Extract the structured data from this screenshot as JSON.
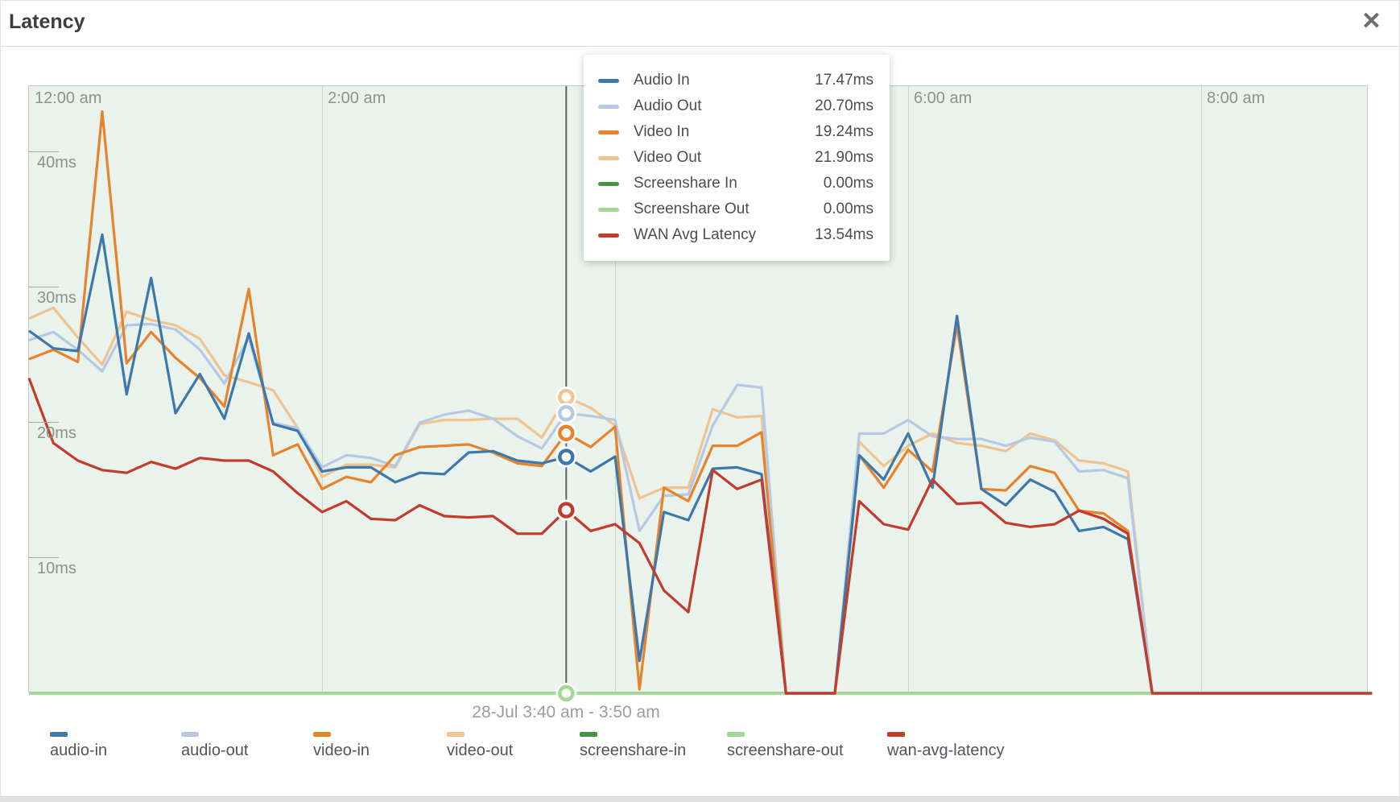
{
  "header": {
    "title": "Latency",
    "close_icon": "✕"
  },
  "axes": {
    "y_tick_labels": [
      "40ms",
      "30ms",
      "20ms",
      "10ms"
    ],
    "x_axis_labels": [
      "12:00 am",
      "2:00 am",
      "4:00 am",
      "6:00 am",
      "8:00 am"
    ]
  },
  "tooltip": {
    "rows": [
      {
        "label": "Audio In",
        "value": "17.47ms",
        "color": "#3d78ad"
      },
      {
        "label": "Audio Out",
        "value": "20.70ms",
        "color": "#b6c9e4"
      },
      {
        "label": "Video In",
        "value": "19.24ms",
        "color": "#e8832c"
      },
      {
        "label": "Video Out",
        "value": "21.90ms",
        "color": "#f0c492"
      },
      {
        "label": "Screenshare In",
        "value": "0.00ms",
        "color": "#48913f"
      },
      {
        "label": "Screenshare Out",
        "value": "0.00ms",
        "color": "#a2d795"
      },
      {
        "label": "WAN Avg Latency",
        "value": "13.54ms",
        "color": "#c23b2c"
      }
    ]
  },
  "hover": {
    "date_range_label": "28-Jul 3:40 am - 3:50 am"
  },
  "legend": {
    "items": [
      {
        "label": "audio-in",
        "color": "#3d78ad"
      },
      {
        "label": "audio-out",
        "color": "#b6c9e4"
      },
      {
        "label": "video-in",
        "color": "#e8832c"
      },
      {
        "label": "video-out",
        "color": "#f0c492"
      },
      {
        "label": "screenshare-in",
        "color": "#48913f"
      },
      {
        "label": "screenshare-out",
        "color": "#a2d795"
      },
      {
        "label": "wan-avg-latency",
        "color": "#c23b2c"
      }
    ]
  },
  "chart_data": {
    "type": "line",
    "title": "Latency",
    "x_unit": "10-minute intervals starting 12:00 am (28-Jul)",
    "x_axis_labels": [
      "12:00 am",
      "2:00 am",
      "4:00 am",
      "6:00 am",
      "8:00 am"
    ],
    "y_axis_tick_values_ms": [
      40,
      30,
      20,
      10
    ],
    "ylim": [
      0,
      44.9
    ],
    "grid": "vertical-only",
    "legend_position": "bottom",
    "crosshair_index": 22,
    "crosshair_time_label": "28-Jul 3:40 am - 3:50 am",
    "series": [
      {
        "id": "audio-in",
        "name": "Audio In",
        "color": "#3d78ad",
        "values": [
          26.8,
          25.5,
          25.3,
          33.9,
          22.1,
          30.7,
          20.7,
          23.6,
          20.3,
          26.6,
          19.9,
          19.4,
          16.4,
          16.7,
          16.7,
          15.6,
          16.3,
          16.2,
          17.8,
          17.9,
          17.2,
          17.0,
          17.47,
          16.4,
          17.5,
          2.4,
          13.4,
          12.8,
          16.6,
          16.7,
          16.2,
          0,
          0,
          0,
          17.6,
          15.8,
          19.2,
          15.2,
          27.9,
          15.1,
          13.9,
          15.8,
          14.9,
          12.0,
          12.3,
          11.4,
          0,
          0,
          0,
          0,
          0,
          0,
          0,
          0,
          0,
          0
        ]
      },
      {
        "id": "audio-out",
        "name": "Audio Out",
        "color": "#b6c9e4",
        "values": [
          26.1,
          26.7,
          25.4,
          23.8,
          27.2,
          27.3,
          26.9,
          25.4,
          22.9,
          26.3,
          20.0,
          19.6,
          16.7,
          17.6,
          17.4,
          16.8,
          20.0,
          20.6,
          20.9,
          20.3,
          19.0,
          18.1,
          20.7,
          20.5,
          20.2,
          12.0,
          14.6,
          14.7,
          19.8,
          22.8,
          22.6,
          0,
          0,
          0,
          19.2,
          19.2,
          20.2,
          19.0,
          18.8,
          18.8,
          18.3,
          18.9,
          18.6,
          16.4,
          16.5,
          15.9,
          0,
          0,
          0,
          0,
          0,
          0,
          0,
          0,
          0,
          0
        ]
      },
      {
        "id": "video-in",
        "name": "Video In",
        "color": "#e8832c",
        "values": [
          24.7,
          25.4,
          24.5,
          43.0,
          24.4,
          26.7,
          24.8,
          23.3,
          21.2,
          29.9,
          17.6,
          18.4,
          15.1,
          16.0,
          15.6,
          17.6,
          18.2,
          18.3,
          18.4,
          17.8,
          17.0,
          16.8,
          19.24,
          18.2,
          19.7,
          0.3,
          15.2,
          14.2,
          18.3,
          18.3,
          19.3,
          0,
          0,
          0,
          17.6,
          15.2,
          18.0,
          16.4,
          27.2,
          15.1,
          15.0,
          16.8,
          16.3,
          13.5,
          13.3,
          12.0,
          0,
          0,
          0,
          0,
          0,
          0,
          0,
          0,
          0,
          0
        ]
      },
      {
        "id": "video-out",
        "name": "Video Out",
        "color": "#f0c492",
        "values": [
          27.7,
          28.5,
          26.3,
          24.3,
          28.2,
          27.6,
          27.2,
          26.2,
          23.5,
          23.0,
          22.4,
          19.6,
          16.0,
          16.9,
          16.9,
          16.7,
          19.9,
          20.2,
          20.2,
          20.3,
          20.3,
          18.9,
          21.9,
          21.1,
          19.8,
          14.4,
          15.2,
          15.2,
          21.0,
          20.4,
          20.5,
          0,
          0,
          0,
          18.6,
          16.8,
          18.3,
          19.2,
          18.5,
          18.3,
          17.9,
          19.2,
          18.7,
          17.2,
          17.0,
          16.4,
          0,
          0,
          0,
          0,
          0,
          0,
          0,
          0,
          0,
          0
        ]
      },
      {
        "id": "screenshare-in",
        "name": "Screenshare In",
        "color": "#48913f",
        "values": [
          0,
          0,
          0,
          0,
          0,
          0,
          0,
          0,
          0,
          0,
          0,
          0,
          0,
          0,
          0,
          0,
          0,
          0,
          0,
          0,
          0,
          0,
          0,
          0,
          0,
          0,
          0,
          0,
          0,
          0,
          0,
          0,
          0,
          0,
          0,
          0,
          0,
          0,
          0,
          0,
          0,
          0,
          0,
          0,
          0,
          0,
          0,
          0,
          0,
          0,
          0,
          0,
          0,
          0,
          0,
          0
        ]
      },
      {
        "id": "screenshare-out",
        "name": "Screenshare Out",
        "color": "#a2d795",
        "values": [
          0,
          0,
          0,
          0,
          0,
          0,
          0,
          0,
          0,
          0,
          0,
          0,
          0,
          0,
          0,
          0,
          0,
          0,
          0,
          0,
          0,
          0,
          0,
          0,
          0,
          0,
          0,
          0,
          0,
          0,
          0,
          0,
          0,
          0,
          0,
          0,
          0,
          0,
          0,
          0,
          0,
          0,
          0,
          0,
          0,
          0,
          0,
          0,
          0,
          0,
          0,
          0,
          0,
          0,
          0,
          0
        ]
      },
      {
        "id": "wan-avg-latency",
        "name": "WAN Avg Latency",
        "color": "#c23b2c",
        "values": [
          23.3,
          18.5,
          17.2,
          16.5,
          16.3,
          17.1,
          16.6,
          17.4,
          17.2,
          17.2,
          16.4,
          14.8,
          13.4,
          14.2,
          12.9,
          12.8,
          13.9,
          13.1,
          13.0,
          13.1,
          11.8,
          11.8,
          13.54,
          12.0,
          12.5,
          11.1,
          7.6,
          6.0,
          16.5,
          15.1,
          15.8,
          0,
          0,
          0,
          14.2,
          12.5,
          12.1,
          15.8,
          14.0,
          14.1,
          12.6,
          12.3,
          12.5,
          13.5,
          12.9,
          11.8,
          0,
          0,
          0,
          0,
          0,
          0,
          0,
          0,
          0,
          0
        ]
      }
    ]
  }
}
